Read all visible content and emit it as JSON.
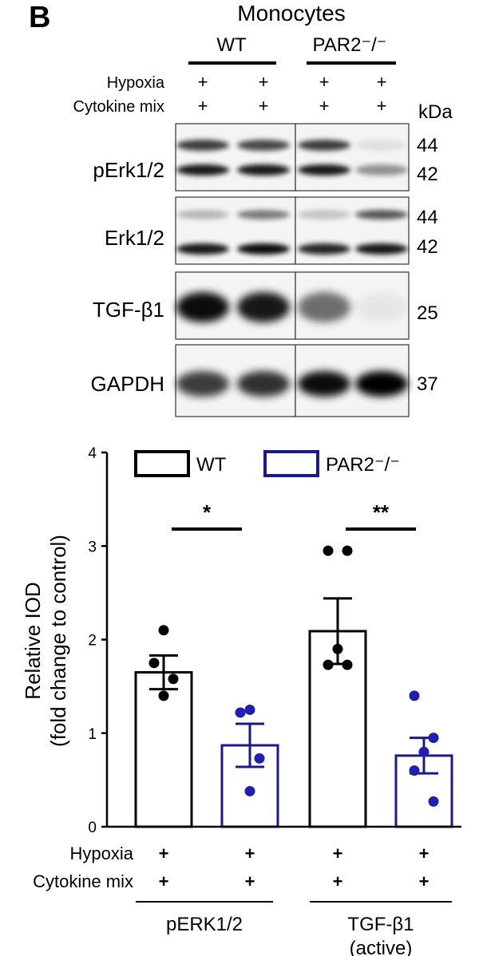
{
  "panel_label": "B",
  "blot": {
    "cell_type": "Monocytes",
    "groups": [
      {
        "label": "WT"
      },
      {
        "label": "PAR2⁻/⁻"
      }
    ],
    "conditions": [
      {
        "label": "Hypoxia",
        "marks": [
          "+",
          "+",
          "+",
          "+"
        ]
      },
      {
        "label": "Cytokine mix",
        "marks": [
          "+",
          "+",
          "+",
          "+"
        ]
      }
    ],
    "unit": "kDa",
    "rows": [
      {
        "label": "pErk1/2",
        "kda": [
          "44",
          "42"
        ]
      },
      {
        "label": "Erk1/2",
        "kda": [
          "44",
          "42"
        ]
      },
      {
        "label": "TGF-β1",
        "kda": [
          "25"
        ]
      },
      {
        "label": "GAPDH",
        "kda": [
          "37"
        ]
      }
    ],
    "band_intensity": {
      "pErk1/2": {
        "44": [
          0.75,
          0.7,
          0.75,
          0.08
        ],
        "42": [
          0.9,
          0.9,
          0.9,
          0.4
        ]
      },
      "Erk1/2": {
        "44": [
          0.25,
          0.5,
          0.2,
          0.65
        ],
        "42": [
          0.9,
          0.95,
          0.85,
          0.9
        ]
      },
      "TGF-β1": {
        "25": [
          0.95,
          0.9,
          0.55,
          0.05
        ]
      },
      "GAPDH": {
        "37": [
          0.75,
          0.8,
          0.95,
          1.0
        ]
      }
    }
  },
  "chart_data": {
    "type": "bar",
    "ylabel_line1": "Relative IOD",
    "ylabel_line2": "(fold change to control)",
    "ylim": [
      0,
      4
    ],
    "yticks": [
      "0",
      "1",
      "2",
      "3",
      "4"
    ],
    "legend": [
      {
        "name": "WT",
        "color": "#000000"
      },
      {
        "name": "PAR2⁻/⁻",
        "color": "#1a1a8c"
      }
    ],
    "bars": [
      {
        "series": "WT",
        "value": 1.65,
        "sem": 0.18,
        "points": [
          2.1,
          1.75,
          1.58,
          1.4
        ]
      },
      {
        "series": "PAR2⁻/⁻",
        "value": 0.87,
        "sem": 0.23,
        "points": [
          1.25,
          1.22,
          0.73,
          0.38
        ]
      },
      {
        "series": "WT",
        "value": 2.09,
        "sem": 0.35,
        "points": [
          2.95,
          2.95,
          1.9,
          1.73,
          1.73
        ]
      },
      {
        "series": "PAR2⁻/⁻",
        "value": 0.76,
        "sem": 0.19,
        "points": [
          1.4,
          0.95,
          0.8,
          0.6,
          0.27
        ]
      }
    ],
    "significance": [
      {
        "label": "*",
        "from_bar": 0,
        "to_bar": 1
      },
      {
        "label": "**",
        "from_bar": 2,
        "to_bar": 3
      }
    ],
    "x_conditions": [
      {
        "label": "Hypoxia",
        "marks": [
          "+",
          "+",
          "+",
          "+"
        ]
      },
      {
        "label": "Cytokine mix",
        "marks": [
          "+",
          "+",
          "+",
          "+"
        ]
      }
    ],
    "groups": [
      {
        "label_line1": "pERK1/2",
        "label_line2": ""
      },
      {
        "label_line1": "TGF-β1",
        "label_line2": "(active)"
      }
    ],
    "colors": {
      "wt": "#000000",
      "par2": "#1a1a8c",
      "wt_dot": "#000000",
      "par2_dot": "#1f1fb4"
    }
  }
}
